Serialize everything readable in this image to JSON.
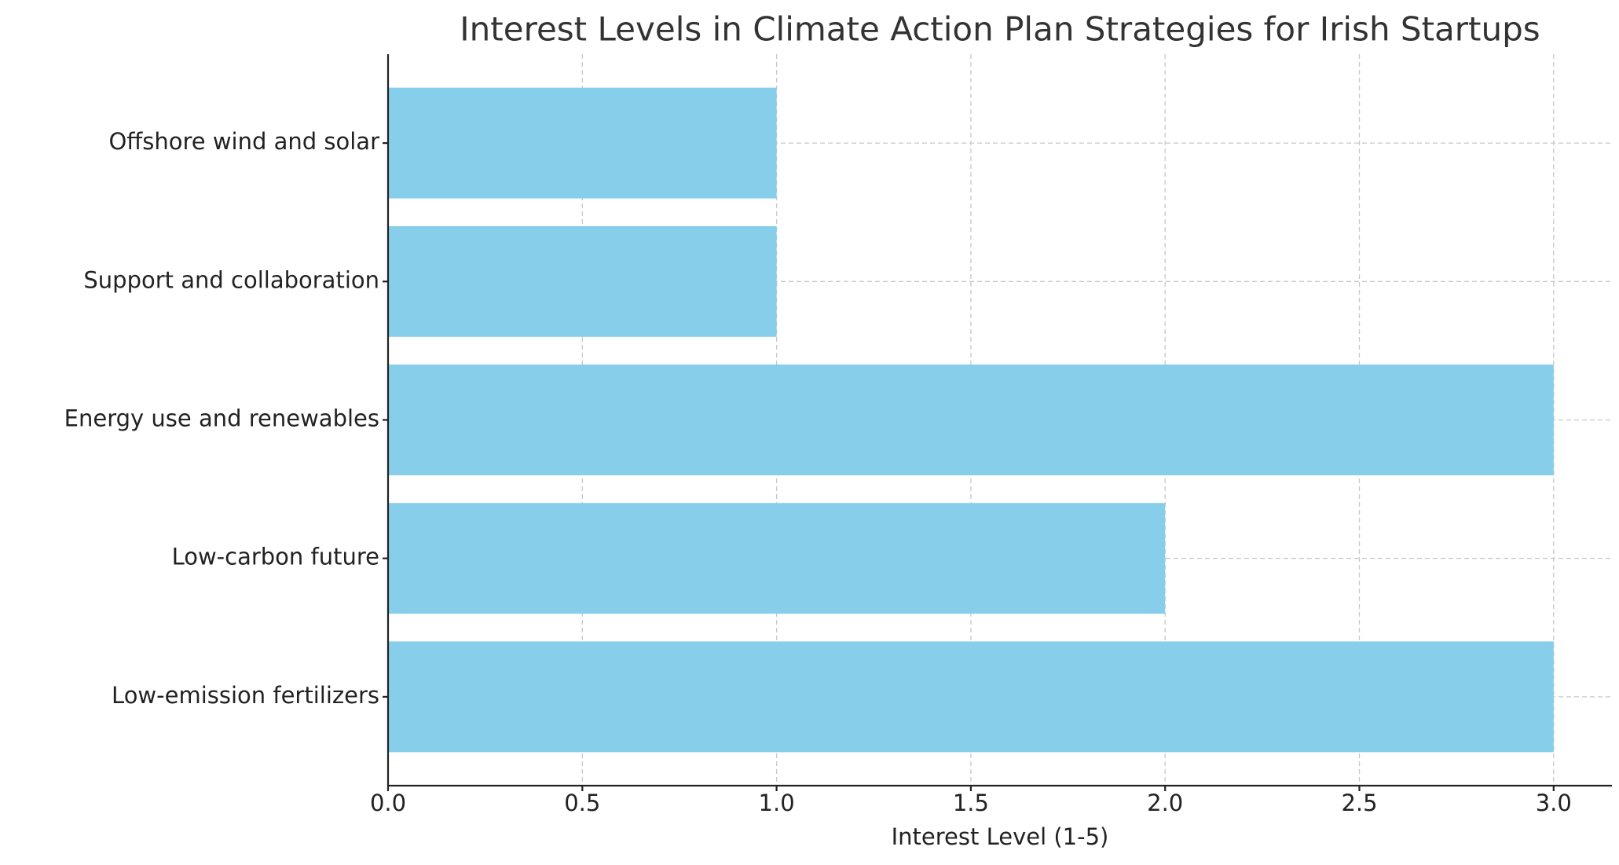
{
  "chart_data": {
    "type": "barh",
    "title": "Interest Levels in Climate Action Plan Strategies for Irish Startups",
    "x_label": "Interest Level (1-5)",
    "categories": [
      "Offshore wind and solar",
      "Support and collaboration",
      "Energy use and renewables",
      "Low-carbon future",
      "Low-emission fertilizers"
    ],
    "values": [
      1,
      1,
      3,
      2,
      3
    ],
    "color": "#87ceeb",
    "xlim": [
      0,
      3.15
    ],
    "xticks": [
      {
        "value": 0,
        "label": "0.0"
      },
      0.5,
      {
        "value": 1,
        "label": "1.0"
      },
      1.5,
      {
        "value": 2,
        "label": "2.0"
      },
      2.5,
      {
        "value": 3,
        "label": "3.0"
      }
    ],
    "grid": true
  }
}
